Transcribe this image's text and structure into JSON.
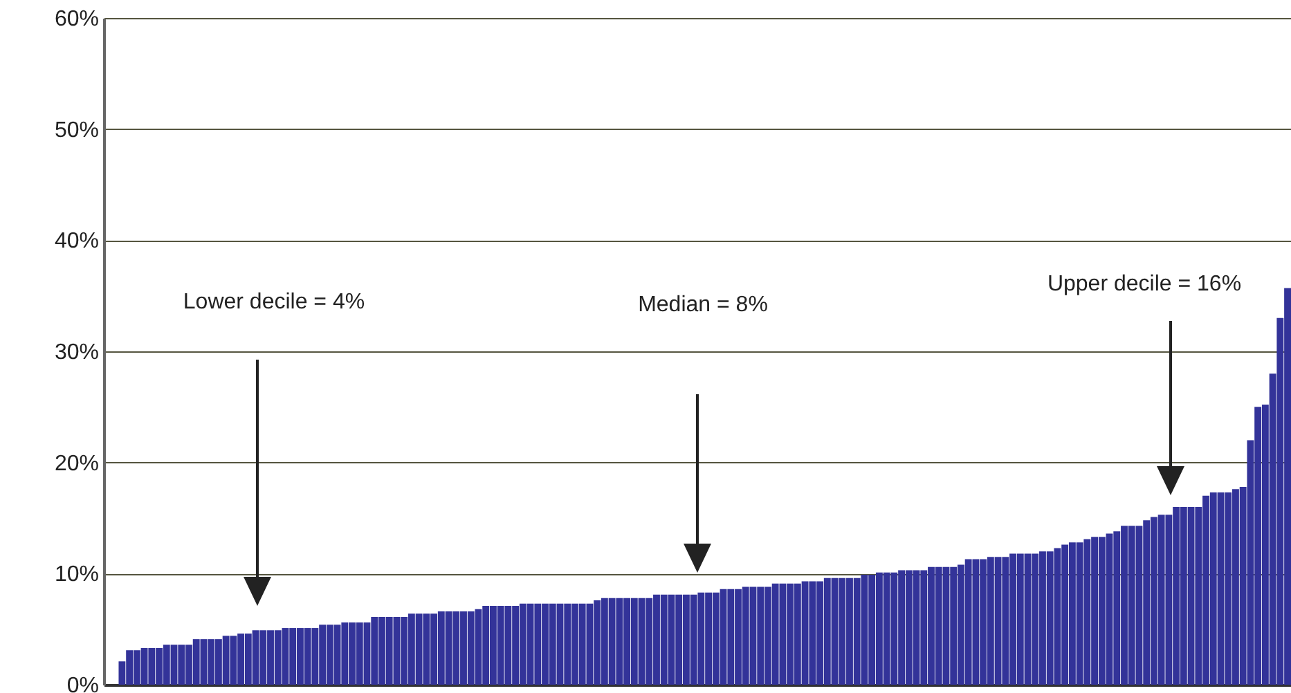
{
  "chart_data": {
    "type": "bar",
    "categories": [
      null,
      null,
      null,
      null,
      null,
      null,
      null,
      null,
      null,
      null,
      null,
      null,
      null,
      null,
      null,
      null,
      null,
      null,
      null,
      null,
      null,
      null,
      null,
      null,
      null,
      null,
      null,
      null,
      null,
      null,
      null,
      null,
      null,
      null,
      null,
      null,
      null,
      null,
      null,
      null,
      null,
      null,
      null,
      null,
      null,
      null,
      null,
      null,
      null,
      null,
      null,
      null,
      null,
      null,
      null,
      null,
      null,
      null,
      null,
      null,
      null,
      null,
      null,
      null,
      null,
      null,
      null,
      null,
      null,
      null,
      null,
      null,
      null,
      null,
      null,
      null,
      null,
      null,
      null,
      null,
      null,
      null,
      null,
      null,
      null,
      null,
      null,
      null,
      null,
      null,
      null,
      null,
      null,
      null,
      null,
      null,
      null,
      null,
      null,
      null,
      null,
      null,
      null,
      null,
      null,
      null,
      null,
      null,
      null,
      null,
      null,
      null,
      null,
      null,
      null,
      null,
      null,
      null,
      null,
      null,
      null,
      null,
      null,
      null,
      null,
      null,
      null,
      null,
      null,
      null,
      null,
      null,
      null,
      null,
      null,
      null,
      null,
      null,
      null,
      null,
      null,
      null,
      null,
      null,
      null,
      null,
      null,
      null,
      null,
      null,
      null,
      null,
      null,
      null,
      null,
      null,
      null,
      null,
      null,
      null
    ],
    "values": [
      null,
      null,
      2.1,
      3.1,
      3.1,
      3.3,
      3.3,
      3.3,
      3.6,
      3.6,
      3.6,
      3.6,
      4.1,
      4.1,
      4.1,
      4.1,
      4.4,
      4.4,
      4.6,
      4.6,
      4.9,
      4.9,
      4.9,
      4.9,
      5.1,
      5.1,
      5.1,
      5.1,
      5.1,
      5.4,
      5.4,
      5.4,
      5.6,
      5.6,
      5.6,
      5.6,
      6.1,
      6.1,
      6.1,
      6.1,
      6.1,
      6.4,
      6.4,
      6.4,
      6.4,
      6.6,
      6.6,
      6.6,
      6.6,
      6.6,
      6.8,
      7.1,
      7.1,
      7.1,
      7.1,
      7.1,
      7.3,
      7.3,
      7.3,
      7.3,
      7.3,
      7.3,
      7.3,
      7.3,
      7.3,
      7.3,
      7.6,
      7.8,
      7.8,
      7.8,
      7.8,
      7.8,
      7.8,
      7.8,
      8.1,
      8.1,
      8.1,
      8.1,
      8.1,
      8.1,
      8.3,
      8.3,
      8.3,
      8.6,
      8.6,
      8.6,
      8.8,
      8.8,
      8.8,
      8.8,
      9.1,
      9.1,
      9.1,
      9.1,
      9.3,
      9.3,
      9.3,
      9.6,
      9.6,
      9.6,
      9.6,
      9.6,
      9.9,
      9.9,
      10.1,
      10.1,
      10.1,
      10.3,
      10.3,
      10.3,
      10.3,
      10.6,
      10.6,
      10.6,
      10.6,
      10.8,
      11.3,
      11.3,
      11.3,
      11.5,
      11.5,
      11.5,
      11.8,
      11.8,
      11.8,
      11.8,
      12.0,
      12.0,
      12.3,
      12.6,
      12.8,
      12.8,
      13.1,
      13.3,
      13.3,
      13.6,
      13.8,
      14.3,
      14.3,
      14.3,
      14.8,
      15.1,
      15.3,
      15.3,
      16.0,
      16.0,
      16.0,
      16.0,
      17.0,
      17.3,
      17.3,
      17.3,
      17.6,
      17.8,
      22.0,
      25.0,
      25.2,
      28.0,
      33.0,
      35.7
    ],
    "color": "#333399",
    "ylim": [
      0,
      60
    ],
    "yticks": [
      {
        "value": 0,
        "label": "0%"
      },
      {
        "value": 10,
        "label": "10%"
      },
      {
        "value": 20,
        "label": "20%"
      },
      {
        "value": 30,
        "label": "30%"
      },
      {
        "value": 40,
        "label": "40%"
      },
      {
        "value": 50,
        "label": "50%"
      },
      {
        "value": 60,
        "label": "60%"
      }
    ],
    "grid": "y",
    "tick_labels": "y",
    "annotations": [
      "Lower decile = 4%",
      "Median = 8%",
      "Upper decile = 16%"
    ]
  }
}
